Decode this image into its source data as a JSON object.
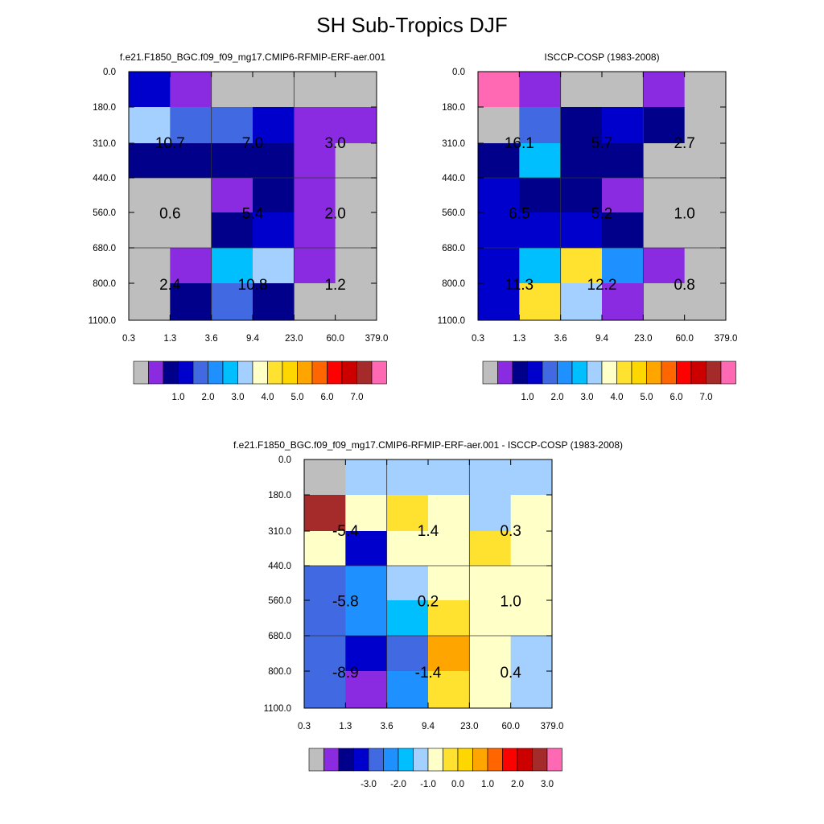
{
  "title": "SH Sub-Tropics DJF",
  "colors": {
    "missing": "#bebebe",
    "palette": [
      "#8a2be2",
      "#00008b",
      "#0000cd",
      "#4169e1",
      "#1e90ff",
      "#00bfff",
      "#a3d0ff",
      "#ffffc8",
      "#ffe230",
      "#ffd700",
      "#ffa500",
      "#ff6600",
      "#ff0000",
      "#cd0000",
      "#a52a2a",
      "#ff69b4"
    ]
  },
  "chart_data": [
    {
      "type": "heatmap",
      "title": "f.e21.F1850_BGC.f09_f09_mg17.CMIP6-RFMIP-ERF-aer.001",
      "x_ticks": [
        "0.3",
        "1.3",
        "3.6",
        "9.4",
        "23.0",
        "60.0",
        "379.0"
      ],
      "y_ticks": [
        "0.0",
        "180.0",
        "310.0",
        "440.0",
        "560.0",
        "680.0",
        "800.0",
        "1100.0"
      ],
      "cells": [
        [
          2,
          0,
          -1,
          -1,
          -1,
          -1
        ],
        [
          6,
          3,
          3,
          2,
          0,
          0
        ],
        [
          1,
          1,
          1,
          1,
          0,
          -1
        ],
        [
          -1,
          -1,
          0,
          1,
          0,
          -1
        ],
        [
          -1,
          -1,
          1,
          2,
          0,
          -1
        ],
        [
          -1,
          0,
          5,
          6,
          0,
          -1
        ],
        [
          -1,
          1,
          3,
          1,
          -1,
          -1
        ]
      ],
      "block_labels": [
        {
          "row_block": 0,
          "col_block": 0,
          "text": "10.7"
        },
        {
          "row_block": 0,
          "col_block": 1,
          "text": "7.0"
        },
        {
          "row_block": 0,
          "col_block": 2,
          "text": "3.0"
        },
        {
          "row_block": 1,
          "col_block": 0,
          "text": "0.6"
        },
        {
          "row_block": 1,
          "col_block": 1,
          "text": "5.4"
        },
        {
          "row_block": 1,
          "col_block": 2,
          "text": "2.0"
        },
        {
          "row_block": 2,
          "col_block": 0,
          "text": "2.4"
        },
        {
          "row_block": 2,
          "col_block": 1,
          "text": "10.8"
        },
        {
          "row_block": 2,
          "col_block": 2,
          "text": "1.2"
        }
      ],
      "colorbar": {
        "labels": [
          "1.0",
          "2.0",
          "3.0",
          "4.0",
          "5.0",
          "6.0",
          "7.0"
        ],
        "offset": 0
      }
    },
    {
      "type": "heatmap",
      "title": "ISCCP-COSP (1983-2008)",
      "x_ticks": [
        "0.3",
        "1.3",
        "3.6",
        "9.4",
        "23.0",
        "60.0",
        "379.0"
      ],
      "y_ticks": [
        "0.0",
        "180.0",
        "310.0",
        "440.0",
        "560.0",
        "680.0",
        "800.0",
        "1100.0"
      ],
      "cells": [
        [
          15,
          0,
          -1,
          -1,
          0,
          -1
        ],
        [
          -1,
          3,
          1,
          2,
          1,
          -1
        ],
        [
          1,
          5,
          1,
          1,
          -1,
          -1
        ],
        [
          2,
          1,
          1,
          0,
          -1,
          -1
        ],
        [
          2,
          2,
          2,
          1,
          -1,
          -1
        ],
        [
          2,
          5,
          8,
          4,
          0,
          -1
        ],
        [
          2,
          8,
          6,
          0,
          -1,
          -1
        ]
      ],
      "block_labels": [
        {
          "row_block": 0,
          "col_block": 0,
          "text": "16.1"
        },
        {
          "row_block": 0,
          "col_block": 1,
          "text": "5.7"
        },
        {
          "row_block": 0,
          "col_block": 2,
          "text": "2.7"
        },
        {
          "row_block": 1,
          "col_block": 0,
          "text": "6.5"
        },
        {
          "row_block": 1,
          "col_block": 1,
          "text": "5.2"
        },
        {
          "row_block": 1,
          "col_block": 2,
          "text": "1.0"
        },
        {
          "row_block": 2,
          "col_block": 0,
          "text": "11.3"
        },
        {
          "row_block": 2,
          "col_block": 1,
          "text": "12.2"
        },
        {
          "row_block": 2,
          "col_block": 2,
          "text": "0.8"
        }
      ],
      "colorbar": {
        "labels": [
          "1.0",
          "2.0",
          "3.0",
          "4.0",
          "5.0",
          "6.0",
          "7.0"
        ],
        "offset": 0
      }
    },
    {
      "type": "heatmap",
      "title": "f.e21.F1850_BGC.f09_f09_mg17.CMIP6-RFMIP-ERF-aer.001 - ISCCP-COSP (1983-2008)",
      "x_ticks": [
        "0.3",
        "1.3",
        "3.6",
        "9.4",
        "23.0",
        "60.0",
        "379.0"
      ],
      "y_ticks": [
        "0.0",
        "180.0",
        "310.0",
        "440.0",
        "560.0",
        "680.0",
        "800.0",
        "1100.0"
      ],
      "cells": [
        [
          -1,
          6,
          6,
          6,
          6,
          6
        ],
        [
          14,
          7,
          8,
          7,
          6,
          7
        ],
        [
          7,
          2,
          7,
          7,
          8,
          7
        ],
        [
          3,
          4,
          6,
          7,
          7,
          7
        ],
        [
          3,
          4,
          5,
          8,
          7,
          7
        ],
        [
          3,
          2,
          3,
          10,
          7,
          6
        ],
        [
          3,
          0,
          4,
          8,
          7,
          6
        ]
      ],
      "block_labels": [
        {
          "row_block": 0,
          "col_block": 0,
          "text": "-5.4"
        },
        {
          "row_block": 0,
          "col_block": 1,
          "text": "1.4"
        },
        {
          "row_block": 0,
          "col_block": 2,
          "text": "0.3"
        },
        {
          "row_block": 1,
          "col_block": 0,
          "text": "-5.8"
        },
        {
          "row_block": 1,
          "col_block": 1,
          "text": "0.2"
        },
        {
          "row_block": 1,
          "col_block": 2,
          "text": "1.0"
        },
        {
          "row_block": 2,
          "col_block": 0,
          "text": "-8.9"
        },
        {
          "row_block": 2,
          "col_block": 1,
          "text": "-1.4"
        },
        {
          "row_block": 2,
          "col_block": 2,
          "text": "0.4"
        }
      ],
      "colorbar": {
        "labels": [
          "-3.0",
          "-2.0",
          "-1.0",
          "0.0",
          "1.0",
          "2.0",
          "3.0"
        ],
        "offset": 1
      }
    }
  ]
}
